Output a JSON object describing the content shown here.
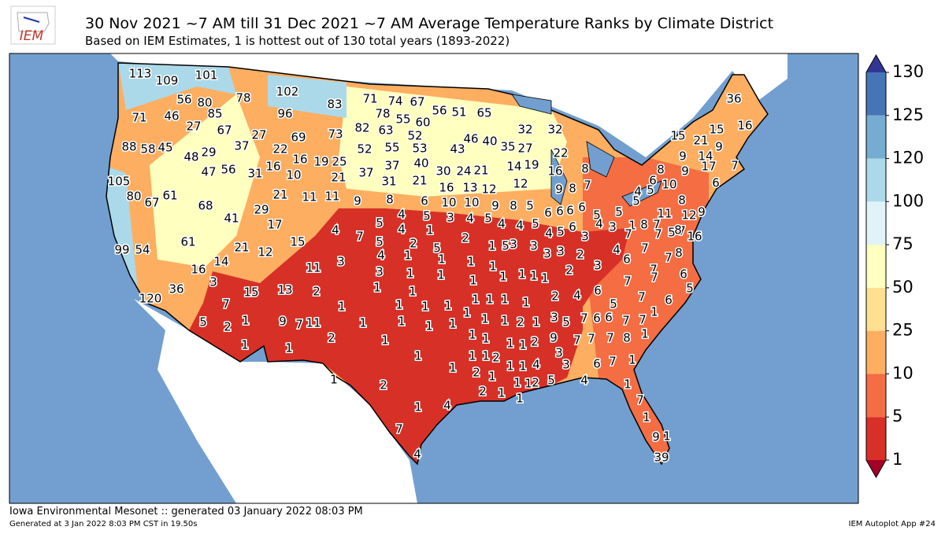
{
  "header": {
    "logo": "IEM",
    "title": "30 Nov 2021 ~7 AM till 31 Dec 2021 ~7 AM Average Temperature Ranks by Climate District",
    "subtitle": "Based on IEM Estimates, 1 is hottest out of 130 total years (1893-2022)"
  },
  "map": {
    "labels": [
      113,
      109,
      101,
      78,
      102,
      83,
      56,
      80,
      71,
      46,
      85,
      96,
      27,
      67,
      27,
      69,
      73,
      88,
      58,
      45,
      37,
      48,
      29,
      22,
      16,
      19,
      25,
      47,
      56,
      31,
      16,
      10,
      21,
      105,
      80,
      67,
      61,
      68,
      21,
      11,
      11,
      41,
      29,
      17,
      15,
      61,
      99,
      54,
      21,
      12,
      14,
      16,
      11,
      3,
      36,
      120,
      15,
      13,
      2,
      7,
      1,
      5,
      2,
      1,
      9,
      7,
      11,
      1,
      2,
      1,
      71,
      74,
      67,
      78,
      55,
      60,
      56,
      51,
      65,
      82,
      63,
      52,
      46,
      40,
      32,
      32,
      52,
      55,
      53,
      43,
      35,
      27,
      22,
      37,
      40,
      14,
      19,
      37,
      31,
      21,
      30,
      24,
      21,
      16,
      8,
      10,
      16,
      13,
      12,
      12,
      10,
      9,
      8,
      5,
      9,
      8,
      7,
      9,
      8,
      6,
      5,
      4,
      5,
      3,
      4,
      5,
      4,
      4,
      5,
      6,
      6,
      6,
      6,
      5,
      5,
      5,
      4,
      5,
      4,
      7,
      5,
      4,
      2,
      1,
      5,
      2,
      1,
      5,
      3,
      3,
      4,
      5,
      6,
      3,
      4,
      3,
      1,
      3,
      4,
      1,
      1,
      1,
      1,
      3,
      3,
      2,
      4,
      7,
      3,
      1,
      1,
      1,
      1,
      1,
      1,
      2,
      3,
      6,
      8,
      7,
      7,
      7,
      7,
      8,
      7,
      5,
      7,
      11,
      12,
      9,
      8,
      16,
      1,
      1,
      1,
      1,
      1,
      1,
      2,
      4,
      6,
      7,
      7,
      6,
      5,
      7,
      6,
      5,
      1,
      1,
      1,
      1,
      1,
      1,
      1,
      1,
      1,
      1,
      1,
      1,
      2,
      3,
      5,
      7,
      6,
      6,
      7,
      7,
      1,
      1,
      1,
      1,
      1,
      1,
      2,
      9,
      7,
      7,
      7,
      8,
      1,
      1,
      1,
      1,
      1,
      2,
      2,
      1,
      1,
      1,
      4,
      3,
      3,
      6,
      7,
      1,
      1,
      2,
      2,
      1,
      1,
      1,
      2,
      5,
      4,
      1,
      1,
      1,
      4,
      7,
      1,
      7,
      9,
      1,
      4,
      39,
      36,
      16,
      15,
      21,
      15,
      9,
      9,
      14,
      17,
      7,
      8,
      9,
      6,
      6,
      10,
      8
    ]
  },
  "colorbar": {
    "ticks": [
      1,
      5,
      10,
      25,
      50,
      75,
      100,
      120,
      125,
      130
    ],
    "colors": [
      "#d73027",
      "#f46d43",
      "#fdae61",
      "#fee090",
      "#ffffbf",
      "#e0f3f8",
      "#abd9e9",
      "#74add1",
      "#4575b4"
    ],
    "under_color": "#a50026",
    "over_color": "#313695"
  },
  "footer": {
    "source": "Iowa Environmental Mesonet :: generated 03 January 2022 08:03 PM",
    "generated": "Generated at 3 Jan 2022 8:03 PM CST in 19.50s",
    "app": "IEM Autoplot App #24"
  }
}
